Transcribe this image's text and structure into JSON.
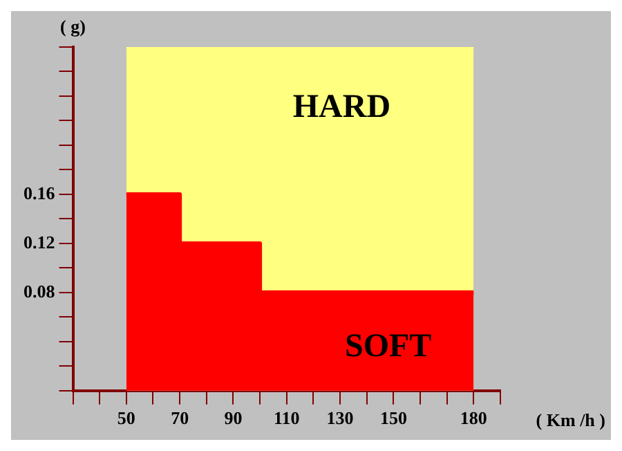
{
  "chart_data": {
    "type": "area",
    "xlabel": "( Km /h )",
    "ylabel": "( g)",
    "grid": false,
    "xlim": [
      30,
      190
    ],
    "xticks": [
      {
        "value": 30,
        "label": null
      },
      {
        "value": 40,
        "label": null
      },
      50,
      {
        "value": 60,
        "label": null
      },
      70,
      {
        "value": 80,
        "label": null
      },
      90,
      {
        "value": 100,
        "label": null
      },
      110,
      {
        "value": 120,
        "label": null
      },
      130,
      {
        "value": 140,
        "label": null
      },
      150,
      {
        "value": 160,
        "label": null
      },
      {
        "value": 170,
        "label": null
      },
      180,
      {
        "value": 190,
        "label": null
      }
    ],
    "ylim": [
      0,
      0.28
    ],
    "yticks": [
      {
        "value": 0,
        "label": null
      },
      {
        "value": 0.02,
        "label": null
      },
      {
        "value": 0.04,
        "label": null
      },
      {
        "value": 0.06,
        "label": null
      },
      0.08,
      {
        "value": 0.1,
        "label": null
      },
      0.12,
      {
        "value": 0.14,
        "label": null
      },
      0.16,
      {
        "value": 0.18,
        "label": null
      },
      {
        "value": 0.2,
        "label": null
      },
      {
        "value": 0.22,
        "label": null
      },
      {
        "value": 0.24,
        "label": null
      },
      {
        "value": 0.26,
        "label": null
      },
      {
        "value": 0.28,
        "label": null
      }
    ],
    "series": [
      {
        "name": "HARD",
        "color": "#ffff80",
        "x": [
          50,
          180
        ],
        "values": [
          0.28,
          0.28
        ]
      },
      {
        "name": "SOFT",
        "color": "#ff0000",
        "x": [
          50,
          70,
          70,
          100,
          100,
          180
        ],
        "values": [
          0.16,
          0.16,
          0.12,
          0.12,
          0.08,
          0.08
        ]
      }
    ]
  }
}
